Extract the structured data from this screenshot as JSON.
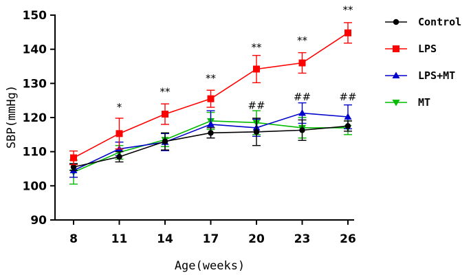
{
  "chart_data": {
    "type": "line",
    "title": "",
    "xlabel": "Age(weeks)",
    "ylabel": "SBP(mmHg)",
    "x": [
      8,
      11,
      14,
      17,
      20,
      23,
      26
    ],
    "xticks": [
      "8",
      "11",
      "14",
      "17",
      "20",
      "23",
      "26"
    ],
    "ylim": [
      90,
      150
    ],
    "yticks": [
      90,
      100,
      110,
      120,
      130,
      140,
      150
    ],
    "legend_position": "right",
    "series": [
      {
        "name": "Control",
        "color": "#000000",
        "marker": "circle",
        "values": [
          105.5,
          108.5,
          113,
          115.5,
          115.8,
          116.3,
          117.5
        ],
        "errors": [
          1,
          1.5,
          2.5,
          1.5,
          4,
          3,
          1.5
        ]
      },
      {
        "name": "LPS",
        "color": "#ff0000",
        "marker": "square",
        "values": [
          108.2,
          115.3,
          121,
          125.5,
          134.2,
          136,
          144.8
        ],
        "errors": [
          2,
          4.5,
          3,
          2.5,
          4,
          3,
          3
        ]
      },
      {
        "name": "LPS+MT",
        "color": "#0000cc",
        "marker": "triangle-up",
        "values": [
          104.5,
          110.8,
          112.8,
          118,
          117,
          121.3,
          120.2
        ],
        "errors": [
          2,
          2,
          2.5,
          4,
          2.5,
          3,
          3.5
        ]
      },
      {
        "name": "MT",
        "color": "#00bb00",
        "marker": "triangle-down",
        "values": [
          104,
          109.8,
          113.5,
          119,
          118.5,
          117,
          117
        ],
        "errors": [
          3.5,
          2,
          2,
          2.5,
          3.5,
          3,
          2
        ]
      }
    ],
    "annotations": [
      {
        "x": 11,
        "text": "*",
        "y": 122
      },
      {
        "x": 14,
        "text": "**",
        "y": 126.5
      },
      {
        "x": 17,
        "text": "**",
        "y": 130.5
      },
      {
        "x": 20,
        "text": "**",
        "y": 139.5
      },
      {
        "x": 23,
        "text": "**",
        "y": 141.5
      },
      {
        "x": 26,
        "text": "**",
        "y": 150.5
      },
      {
        "x": 20,
        "text": "##",
        "y": 122.5
      },
      {
        "x": 23,
        "text": "##",
        "y": 125
      },
      {
        "x": 26,
        "text": "##",
        "y": 125
      }
    ]
  }
}
